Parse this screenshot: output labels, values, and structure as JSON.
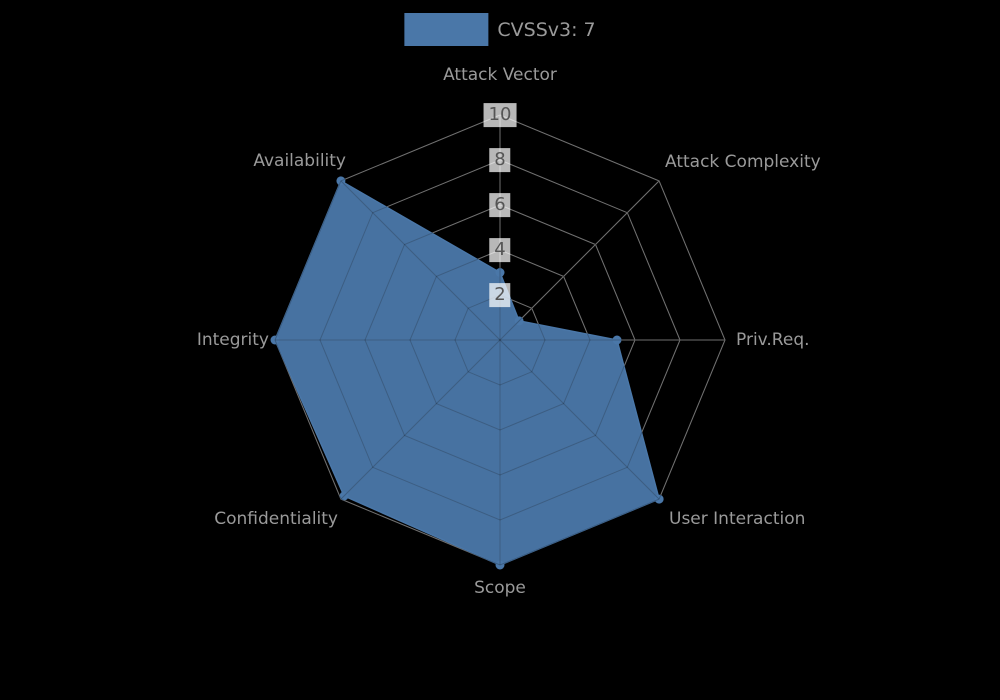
{
  "legend": {
    "label": "CVSSv3: 7",
    "swatch_color": "#4a77a8"
  },
  "chart_data": {
    "type": "radar",
    "title": "CVSSv3: 7",
    "categories": [
      "Attack Vector",
      "Attack Complexity",
      "Priv.Req.",
      "User Interaction",
      "Scope",
      "Confidentiality",
      "Integrity",
      "Availability"
    ],
    "series": [
      {
        "name": "CVSSv3",
        "score": 7,
        "color": "#4a77a8",
        "values": [
          3,
          1.2,
          5.2,
          10,
          10,
          9.8,
          10,
          10
        ]
      }
    ],
    "radial_ticks": [
      2,
      4,
      6,
      8,
      10
    ],
    "rlim": [
      0,
      10
    ],
    "grid": true,
    "legend_position": "top-center",
    "start_axis": "top",
    "direction": "clockwise"
  },
  "colors": {
    "background": "#000000",
    "grid_line": "#909090",
    "grid_line_over_fill": "rgba(0,0,0,0.22)",
    "axis_label": "#9a9a9a",
    "tick_text": "#555555",
    "tick_box": "rgba(255,255,255,0.72)",
    "legend_text": "#9a9a9a"
  }
}
